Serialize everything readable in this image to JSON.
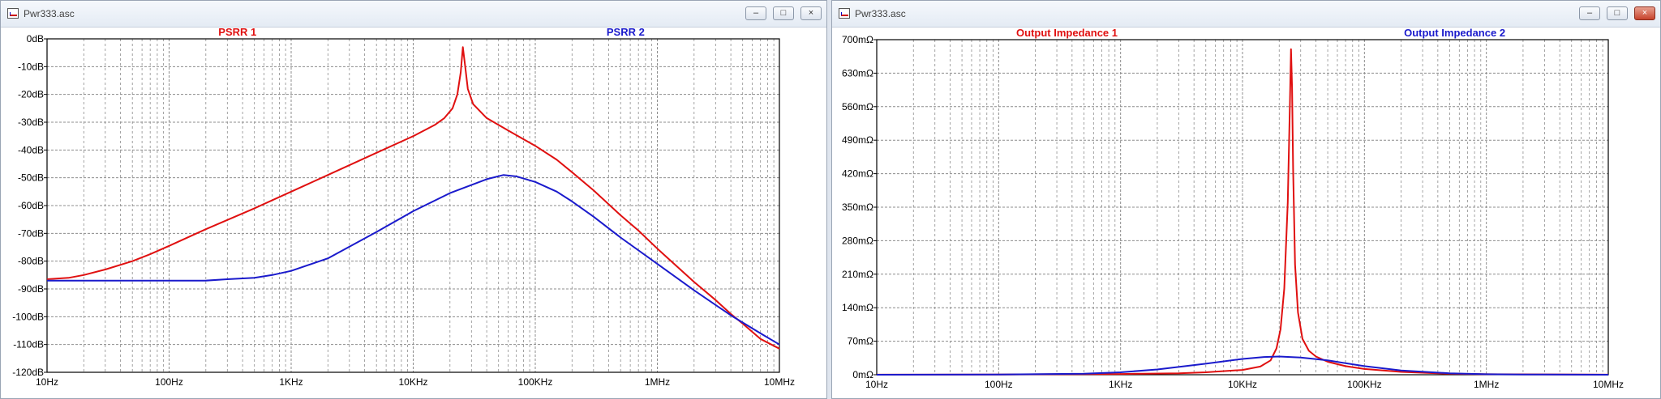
{
  "windows": [
    {
      "title": "Pwr333.asc",
      "controls": {
        "minimize": "–",
        "maximize": "□",
        "close": "×"
      }
    },
    {
      "title": "Pwr333.asc",
      "controls": {
        "minimize": "–",
        "maximize": "□",
        "close": "×"
      }
    }
  ],
  "colors": {
    "trace1": "#e01010",
    "trace2": "#1a1acc",
    "grid": "#8c8c8c",
    "frame": "#000000"
  },
  "chart_data": [
    {
      "type": "line",
      "xscale": "log",
      "xlim": [
        10,
        10000000
      ],
      "ylim": [
        -120,
        0
      ],
      "grid": true,
      "x_ticks": [
        10,
        100,
        1000,
        10000,
        100000,
        1000000,
        10000000
      ],
      "x_tick_labels": [
        "10Hz",
        "100Hz",
        "1KHz",
        "10KHz",
        "100KHz",
        "1MHz",
        "10MHz"
      ],
      "y_ticks": [
        0,
        -10,
        -20,
        -30,
        -40,
        -50,
        -60,
        -70,
        -80,
        -90,
        -100,
        -110,
        -120
      ],
      "y_tick_labels": [
        "0dB",
        "-10dB",
        "-20dB",
        "-30dB",
        "-40dB",
        "-50dB",
        "-60dB",
        "-70dB",
        "-80dB",
        "-90dB",
        "-100dB",
        "-110dB",
        "-120dB"
      ],
      "series": [
        {
          "name": "PSRR 1",
          "color": "#e01010",
          "x": [
            10,
            15,
            20,
            30,
            50,
            70,
            100,
            200,
            500,
            1000,
            2000,
            5000,
            10000,
            15000,
            18000,
            21000,
            23000,
            24500,
            25500,
            26500,
            28000,
            31000,
            40000,
            60000,
            100000,
            150000,
            200000,
            300000,
            500000,
            700000,
            1000000,
            2000000,
            3000000,
            4000000,
            5000000,
            7000000,
            10000000
          ],
          "y": [
            -86.5,
            -86,
            -85,
            -83,
            -80,
            -77.5,
            -74.5,
            -68.5,
            -61,
            -55,
            -49,
            -41,
            -35,
            -31,
            -28.5,
            -25,
            -20,
            -12,
            -3,
            -9,
            -18,
            -23.5,
            -28.5,
            -33,
            -38.5,
            -43.5,
            -48,
            -54.5,
            -63.5,
            -69,
            -75.5,
            -87.5,
            -94,
            -99,
            -102.5,
            -108,
            -111.5
          ]
        },
        {
          "name": "PSRR 2",
          "color": "#1a1acc",
          "x": [
            10,
            30,
            100,
            200,
            300,
            500,
            700,
            1000,
            2000,
            5000,
            10000,
            20000,
            40000,
            55000,
            70000,
            100000,
            150000,
            200000,
            300000,
            500000,
            1000000,
            2000000,
            4000000,
            7000000,
            10000000
          ],
          "y": [
            -87,
            -87,
            -87,
            -87,
            -86.5,
            -86,
            -85,
            -83.5,
            -79,
            -69.5,
            -62,
            -55.5,
            -50.5,
            -49,
            -49.5,
            -51.5,
            -55,
            -58.5,
            -64,
            -71.5,
            -81,
            -90.5,
            -99.5,
            -106,
            -110
          ]
        }
      ]
    },
    {
      "type": "line",
      "xscale": "log",
      "xlim": [
        10,
        10000000
      ],
      "ylim": [
        0,
        700
      ],
      "grid": true,
      "x_ticks": [
        10,
        100,
        1000,
        10000,
        100000,
        1000000,
        10000000
      ],
      "x_tick_labels": [
        "10Hz",
        "100Hz",
        "1KHz",
        "10KHz",
        "100KHz",
        "1MHz",
        "10MHz"
      ],
      "y_ticks": [
        700,
        630,
        560,
        490,
        420,
        350,
        280,
        210,
        140,
        70,
        0
      ],
      "y_tick_labels": [
        "700mΩ",
        "630mΩ",
        "560mΩ",
        "490mΩ",
        "420mΩ",
        "350mΩ",
        "280mΩ",
        "210mΩ",
        "140mΩ",
        "70mΩ",
        "0mΩ"
      ],
      "series": [
        {
          "name": "Output Impedance 1",
          "color": "#e01010",
          "x": [
            10,
            100,
            1000,
            3000,
            5000,
            10000,
            14000,
            17000,
            19000,
            20500,
            22000,
            23500,
            24500,
            25000,
            25500,
            26000,
            27000,
            28500,
            31000,
            35000,
            40000,
            50000,
            70000,
            100000,
            200000,
            500000,
            1000000,
            10000000
          ],
          "y": [
            0.2,
            0.5,
            1.5,
            3,
            5,
            10,
            17,
            30,
            55,
            95,
            180,
            360,
            570,
            680,
            600,
            430,
            230,
            130,
            75,
            50,
            38,
            27,
            18,
            12,
            6,
            2,
            1,
            0.2
          ]
        },
        {
          "name": "Output Impedance 2",
          "color": "#1a1acc",
          "x": [
            10,
            100,
            500,
            1000,
            2000,
            5000,
            10000,
            15000,
            20000,
            30000,
            50000,
            100000,
            200000,
            500000,
            1000000,
            2000000,
            10000000
          ],
          "y": [
            0,
            0.5,
            2,
            5,
            11,
            23,
            33,
            37,
            38,
            36,
            30,
            18,
            9,
            3,
            1,
            0.5,
            0
          ]
        }
      ]
    }
  ]
}
